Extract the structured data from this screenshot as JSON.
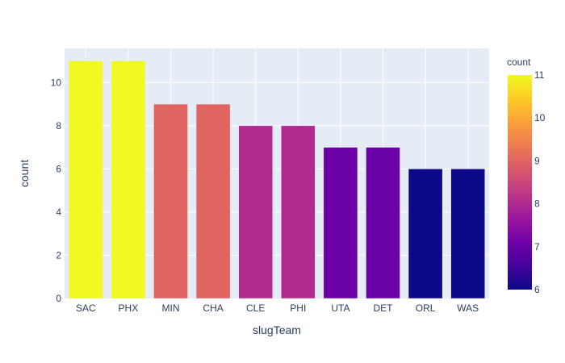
{
  "chart_data": {
    "type": "bar",
    "title": "",
    "xlabel": "slugTeam",
    "ylabel": "count",
    "categories": [
      "SAC",
      "PHX",
      "MIN",
      "CHA",
      "CLE",
      "PHI",
      "UTA",
      "DET",
      "ORL",
      "WAS"
    ],
    "values": [
      11,
      11,
      9,
      9,
      8,
      8,
      7,
      7,
      6,
      6
    ],
    "ylim": [
      0,
      11.58
    ],
    "yticks": [
      0,
      2,
      4,
      6,
      8,
      10
    ],
    "grid": true,
    "colorbar": {
      "title": "count",
      "range": [
        6,
        11
      ],
      "ticks": [
        6,
        7,
        8,
        9,
        10,
        11
      ],
      "colorscale": "plasma",
      "placement": "right"
    },
    "colors": {
      "plot_bg": "#e5ecf6",
      "grid": "#ffffff",
      "text": "#2a3f5f"
    }
  }
}
